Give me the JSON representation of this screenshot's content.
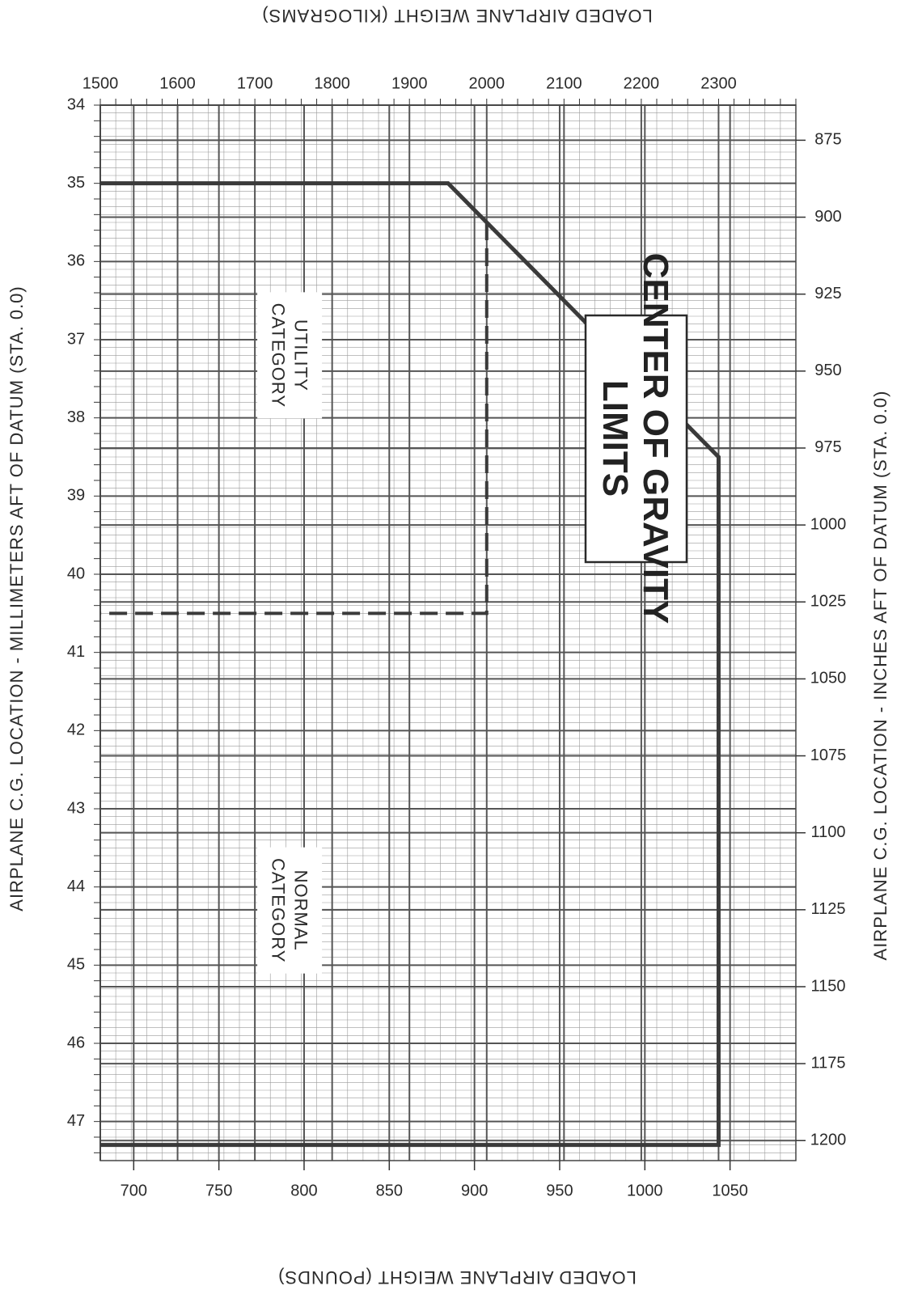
{
  "chart_data": {
    "type": "line",
    "title": "CENTER OF GRAVITY LIMITS",
    "x_primary": {
      "label": "AIRPLANE C.G. LOCATION - INCHES AFT OF DATUM (STA. 0.0)",
      "range": [
        34,
        47.5
      ],
      "ticks": [
        34,
        35,
        36,
        37,
        38,
        39,
        40,
        41,
        42,
        43,
        44,
        45,
        46,
        47
      ]
    },
    "x_secondary": {
      "label": "AIRPLANE C.G. LOCATION - MILLIMETERS AFT OF DATUM (STA. 0.0)",
      "ticks": [
        875,
        900,
        925,
        950,
        975,
        1000,
        1025,
        1050,
        1075,
        1100,
        1125,
        1150,
        1175,
        1200
      ]
    },
    "y_primary": {
      "label": "LOADED AIRPLANE WEIGHT (POUNDS)",
      "range": [
        1500,
        2400
      ],
      "ticks": [
        1500,
        1600,
        1700,
        1800,
        1900,
        2000,
        2100,
        2200,
        2300
      ]
    },
    "y_secondary": {
      "label": "LOADED AIRPLANE WEIGHT (KILOGRAMS)",
      "ticks": [
        700,
        750,
        800,
        850,
        900,
        950,
        1000,
        1050
      ]
    },
    "series": [
      {
        "name": "NORMAL CATEGORY",
        "style": "solid",
        "points": [
          [
            35.0,
            1500
          ],
          [
            35.0,
            1950
          ],
          [
            38.5,
            2300
          ],
          [
            47.3,
            2300
          ],
          [
            47.3,
            1500
          ]
        ]
      },
      {
        "name": "UTILITY CATEGORY",
        "style": "dashed",
        "points": [
          [
            35.5,
            2000
          ],
          [
            40.5,
            2000
          ],
          [
            40.5,
            1500
          ]
        ]
      }
    ],
    "annotations": [
      {
        "text": [
          "NORMAL",
          "CATEGORY"
        ],
        "x": 44.3,
        "y": 1745
      },
      {
        "text": [
          "UTILITY",
          "CATEGORY"
        ],
        "x": 37.2,
        "y": 1745
      }
    ],
    "grid": true,
    "colors": {
      "grid": "#555555",
      "line": "#3a3a3a"
    }
  }
}
